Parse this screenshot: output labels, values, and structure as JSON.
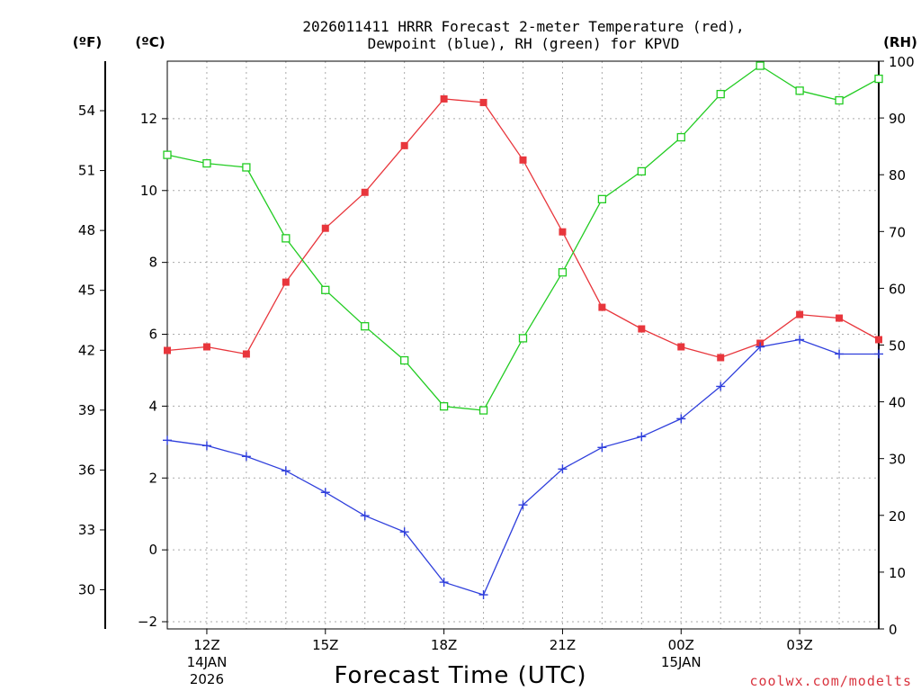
{
  "chart_data": {
    "type": "line",
    "title_line1": "2026011411 HRRR Forecast 2-meter Temperature (red),",
    "title_line2": "Dewpoint (blue), RH (green) for KPVD",
    "xlabel": "Forecast Time (UTC)",
    "credit": "coolwx.com/modelts",
    "unit_f": "(ºF)",
    "unit_c": "(ºC)",
    "unit_rh": "(RH)",
    "hours": [
      11,
      12,
      13,
      14,
      15,
      16,
      17,
      18,
      19,
      20,
      21,
      22,
      23,
      24,
      25,
      26,
      27,
      28,
      29
    ],
    "x_range": [
      11,
      29
    ],
    "c_range": [
      -2.2,
      13.6
    ],
    "rh_range": [
      0,
      100
    ],
    "c_ticks": [
      -2,
      0,
      2,
      4,
      6,
      8,
      10,
      12
    ],
    "f_ticks": [
      30,
      33,
      36,
      39,
      42,
      45,
      48,
      51,
      54
    ],
    "rh_ticks": [
      0,
      10,
      20,
      30,
      40,
      50,
      60,
      70,
      80,
      90,
      100
    ],
    "x_ticks": [
      {
        "h": 12,
        "label": "12Z",
        "sub1": "14JAN",
        "sub2": "2026"
      },
      {
        "h": 15,
        "label": "15Z",
        "sub1": "",
        "sub2": ""
      },
      {
        "h": 18,
        "label": "18Z",
        "sub1": "",
        "sub2": ""
      },
      {
        "h": 21,
        "label": "21Z",
        "sub1": "",
        "sub2": ""
      },
      {
        "h": 24,
        "label": "00Z",
        "sub1": "15JAN",
        "sub2": ""
      },
      {
        "h": 27,
        "label": "03Z",
        "sub1": "",
        "sub2": ""
      }
    ],
    "series": [
      {
        "name": "Temperature",
        "color": "#e8363c",
        "marker": "filled-square",
        "values": [
          5.55,
          5.65,
          5.45,
          7.45,
          8.95,
          9.95,
          11.25,
          12.55,
          12.45,
          10.85,
          8.85,
          6.75,
          6.15,
          5.65,
          5.35,
          5.75,
          6.55,
          6.45,
          5.85
        ]
      },
      {
        "name": "Dewpoint",
        "color": "#2f3fdc",
        "marker": "plus",
        "values": [
          3.05,
          2.9,
          2.6,
          2.2,
          1.6,
          0.95,
          0.5,
          -0.9,
          -1.25,
          1.25,
          2.25,
          2.85,
          3.15,
          3.65,
          4.55,
          5.65,
          5.85,
          5.45,
          5.45
        ]
      },
      {
        "name": "RH",
        "color": "#22cc22",
        "marker": "open-square",
        "axis": "rh",
        "values": [
          83.5,
          82,
          81.3,
          68.8,
          59.7,
          53.3,
          47.3,
          39.2,
          38.5,
          51.2,
          62.8,
          75.7,
          80.6,
          86.6,
          94.2,
          99.2,
          94.8,
          93.1,
          96.9
        ]
      }
    ]
  }
}
